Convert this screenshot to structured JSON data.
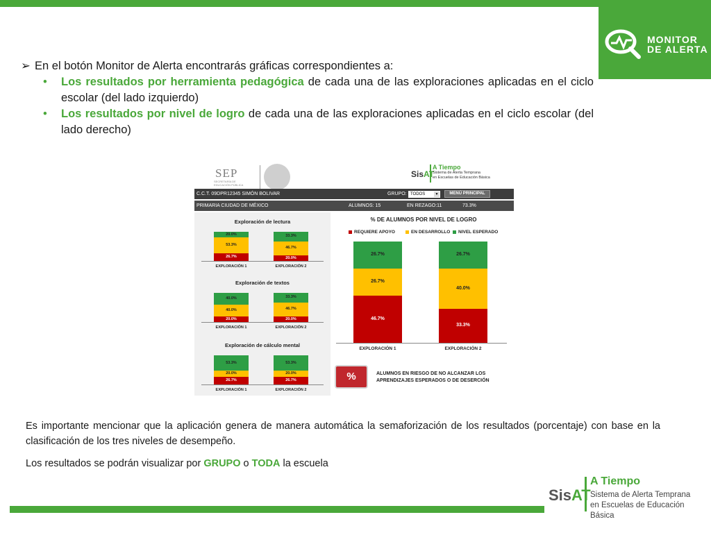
{
  "badge": {
    "line1": "MONITOR",
    "line2": "DE ALERTA",
    "icon": "monitor-search-icon"
  },
  "bullets": {
    "arrow": "➢",
    "intro": "En el botón Monitor de Alerta encontrarás gráficas correspondientes a:",
    "dot": "•",
    "item1_bold": "Los resultados por herramienta pedagógica",
    "item1_rest": " de cada una de las exploraciones aplicadas en el ciclo escolar (del lado izquierdo)",
    "item2_bold": "Los resultados por nivel de logro",
    "item2_rest": " de cada una de las exploraciones aplicadas en el ciclo escolar (del lado derecho)"
  },
  "dashboard": {
    "sep_logo": "SEP",
    "sep_sub1": "SECRETARÍA DE",
    "sep_sub2": "EDUCACIÓN PÚBLICA",
    "sisat_name_a": "Sis",
    "sisat_name_b": "AT",
    "sisat_title": "A Tiempo",
    "sisat_sub1": "Sistema de Alerta Temprana",
    "sisat_sub2": "en Escuelas de Educación Básica",
    "header": {
      "cct": "C.C.T. 09DPR12345   SIMÓN BOLIVAR",
      "grupo_label": "GRUPO:",
      "grupo_value": "TODOS",
      "menu_button": "MENÚ PRINCIPAL",
      "nivel": "PRIMARIA     CIUDAD DE MÉXICO",
      "alumnos": "ALUMNOS:  15",
      "rezago": "EN REZAGO:11",
      "rezago_pct": "73.3%"
    },
    "mini_charts": [
      {
        "title": "Exploración de lectura",
        "bars": [
          {
            "label": "EXPLORACIÓN 1",
            "red": "26.7%",
            "yellow": "53.3%",
            "green": "20.0%",
            "r": 26.7,
            "y": 53.3,
            "g": 20.0
          },
          {
            "label": "EXPLORACIÓN 2",
            "red": "20.0%",
            "yellow": "46.7%",
            "green": "33.3%",
            "r": 20.0,
            "y": 46.7,
            "g": 33.3
          }
        ]
      },
      {
        "title": "Exploración de textos",
        "bars": [
          {
            "label": "EXPLORACIÓN 1",
            "red": "20.0%",
            "yellow": "40.0%",
            "green": "40.0%",
            "r": 20.0,
            "y": 40.0,
            "g": 40.0
          },
          {
            "label": "EXPLORACIÓN 2",
            "red": "20.0%",
            "yellow": "46.7%",
            "green": "33.3%",
            "r": 20.0,
            "y": 46.7,
            "g": 33.3
          }
        ]
      },
      {
        "title": "Exploración de cálculo mental",
        "bars": [
          {
            "label": "EXPLORACIÓN 1",
            "red": "26.7%",
            "yellow": "20.0%",
            "green": "53.3%",
            "r": 26.7,
            "y": 20.0,
            "g": 53.3
          },
          {
            "label": "EXPLORACIÓN 2",
            "red": "26.7%",
            "yellow": "20.0%",
            "green": "53.3%",
            "r": 26.7,
            "y": 20.0,
            "g": 53.3
          }
        ]
      }
    ],
    "big_chart": {
      "title": "% DE ALUMNOS POR NIVEL DE LOGRO",
      "legend": [
        "REQUIERE APOYO",
        "EN DESARROLLO",
        "NIVEL ESPERADO"
      ],
      "bars": [
        {
          "label": "EXPLORACIÓN 1",
          "red": "46.7%",
          "yellow": "26.7%",
          "green": "26.7%",
          "r": 46.7,
          "y": 26.7,
          "g": 26.7
        },
        {
          "label": "EXPLORACIÓN 2",
          "red": "33.3%",
          "yellow": "40.0%",
          "green": "26.7%",
          "r": 33.3,
          "y": 40.0,
          "g": 26.7
        }
      ]
    },
    "pct_button": "%",
    "risk_text": "ALUMNOS EN RIESGO DE NO ALCANZAR LOS APRENDIZAJES ESPERADOS O DE DESERCIÓN"
  },
  "paragraphs": {
    "p1": "Es importante mencionar que la aplicación genera de manera automática la semaforización de los resultados (porcentaje) con base en la clasificación de los tres niveles de desempeño.",
    "p2_a": "Los resultados se podrán visualizar por ",
    "p2_grupo": "GRUPO",
    "p2_o": " o  ",
    "p2_toda": "TODA",
    "p2_end": " la escuela"
  },
  "footer_logo": {
    "name_a": "Sis",
    "name_b": "AT",
    "title": "A Tiempo",
    "sub1": "Sistema de Alerta Temprana",
    "sub2": "en Escuelas de Educación Básica"
  },
  "colors": {
    "green": "#4aa83a",
    "red": "#c00000",
    "yellow": "#ffc000",
    "seg_green": "#2e9e45"
  }
}
